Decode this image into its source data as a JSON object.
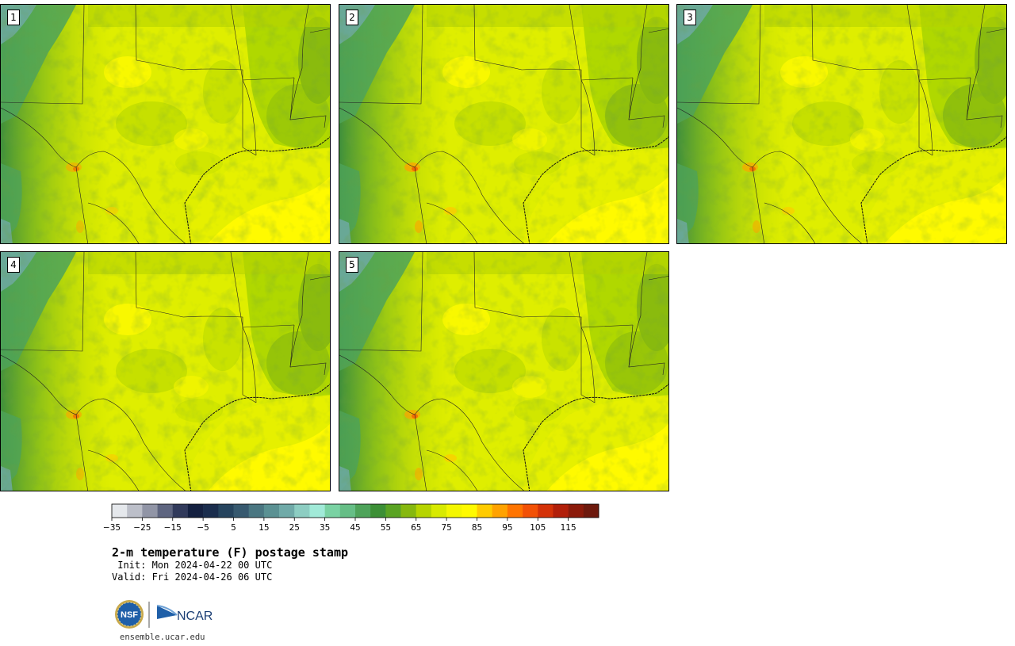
{
  "panels": [
    {
      "label": "1",
      "warm_nm": 0.55,
      "east_cool": 0.45
    },
    {
      "label": "2",
      "warm_nm": 0.75,
      "east_cool": 0.7
    },
    {
      "label": "3",
      "warm_nm": 0.65,
      "east_cool": 0.75
    },
    {
      "label": "4",
      "warm_nm": 0.6,
      "east_cool": 0.6
    },
    {
      "label": "5",
      "warm_nm": 0.7,
      "east_cool": 0.55
    }
  ],
  "colorbar": {
    "tick_labels": [
      "−35",
      "−25",
      "−15",
      "−5",
      "5",
      "15",
      "25",
      "35",
      "45",
      "55",
      "65",
      "75",
      "85",
      "95",
      "105",
      "115"
    ],
    "colors": [
      "#e5e8ec",
      "#bcbfc9",
      "#9195a6",
      "#5e6580",
      "#313a5b",
      "#142040",
      "#1a2d4d",
      "#26445e",
      "#37596f",
      "#4a7681",
      "#5b9193",
      "#70aaa8",
      "#8dcdc2",
      "#a1ead8",
      "#7ad2a3",
      "#66be86",
      "#4ea35a",
      "#3c8f36",
      "#5aa323",
      "#86b80f",
      "#b6d400",
      "#d8ea00",
      "#f4f600",
      "#fffa00",
      "#ffcb00",
      "#ffa200",
      "#ff7400",
      "#f25106",
      "#d43208",
      "#b11f0a",
      "#8b1a0a",
      "#6d190d"
    ]
  },
  "title": "2-m temperature (F) postage stamp",
  "init": " Init: Mon 2024-04-22 00 UTC",
  "valid": "Valid: Fri 2024-04-26 06 UTC",
  "logo": {
    "nsf": "NSF",
    "ncar": "NCAR"
  },
  "site": "ensemble.ucar.edu"
}
